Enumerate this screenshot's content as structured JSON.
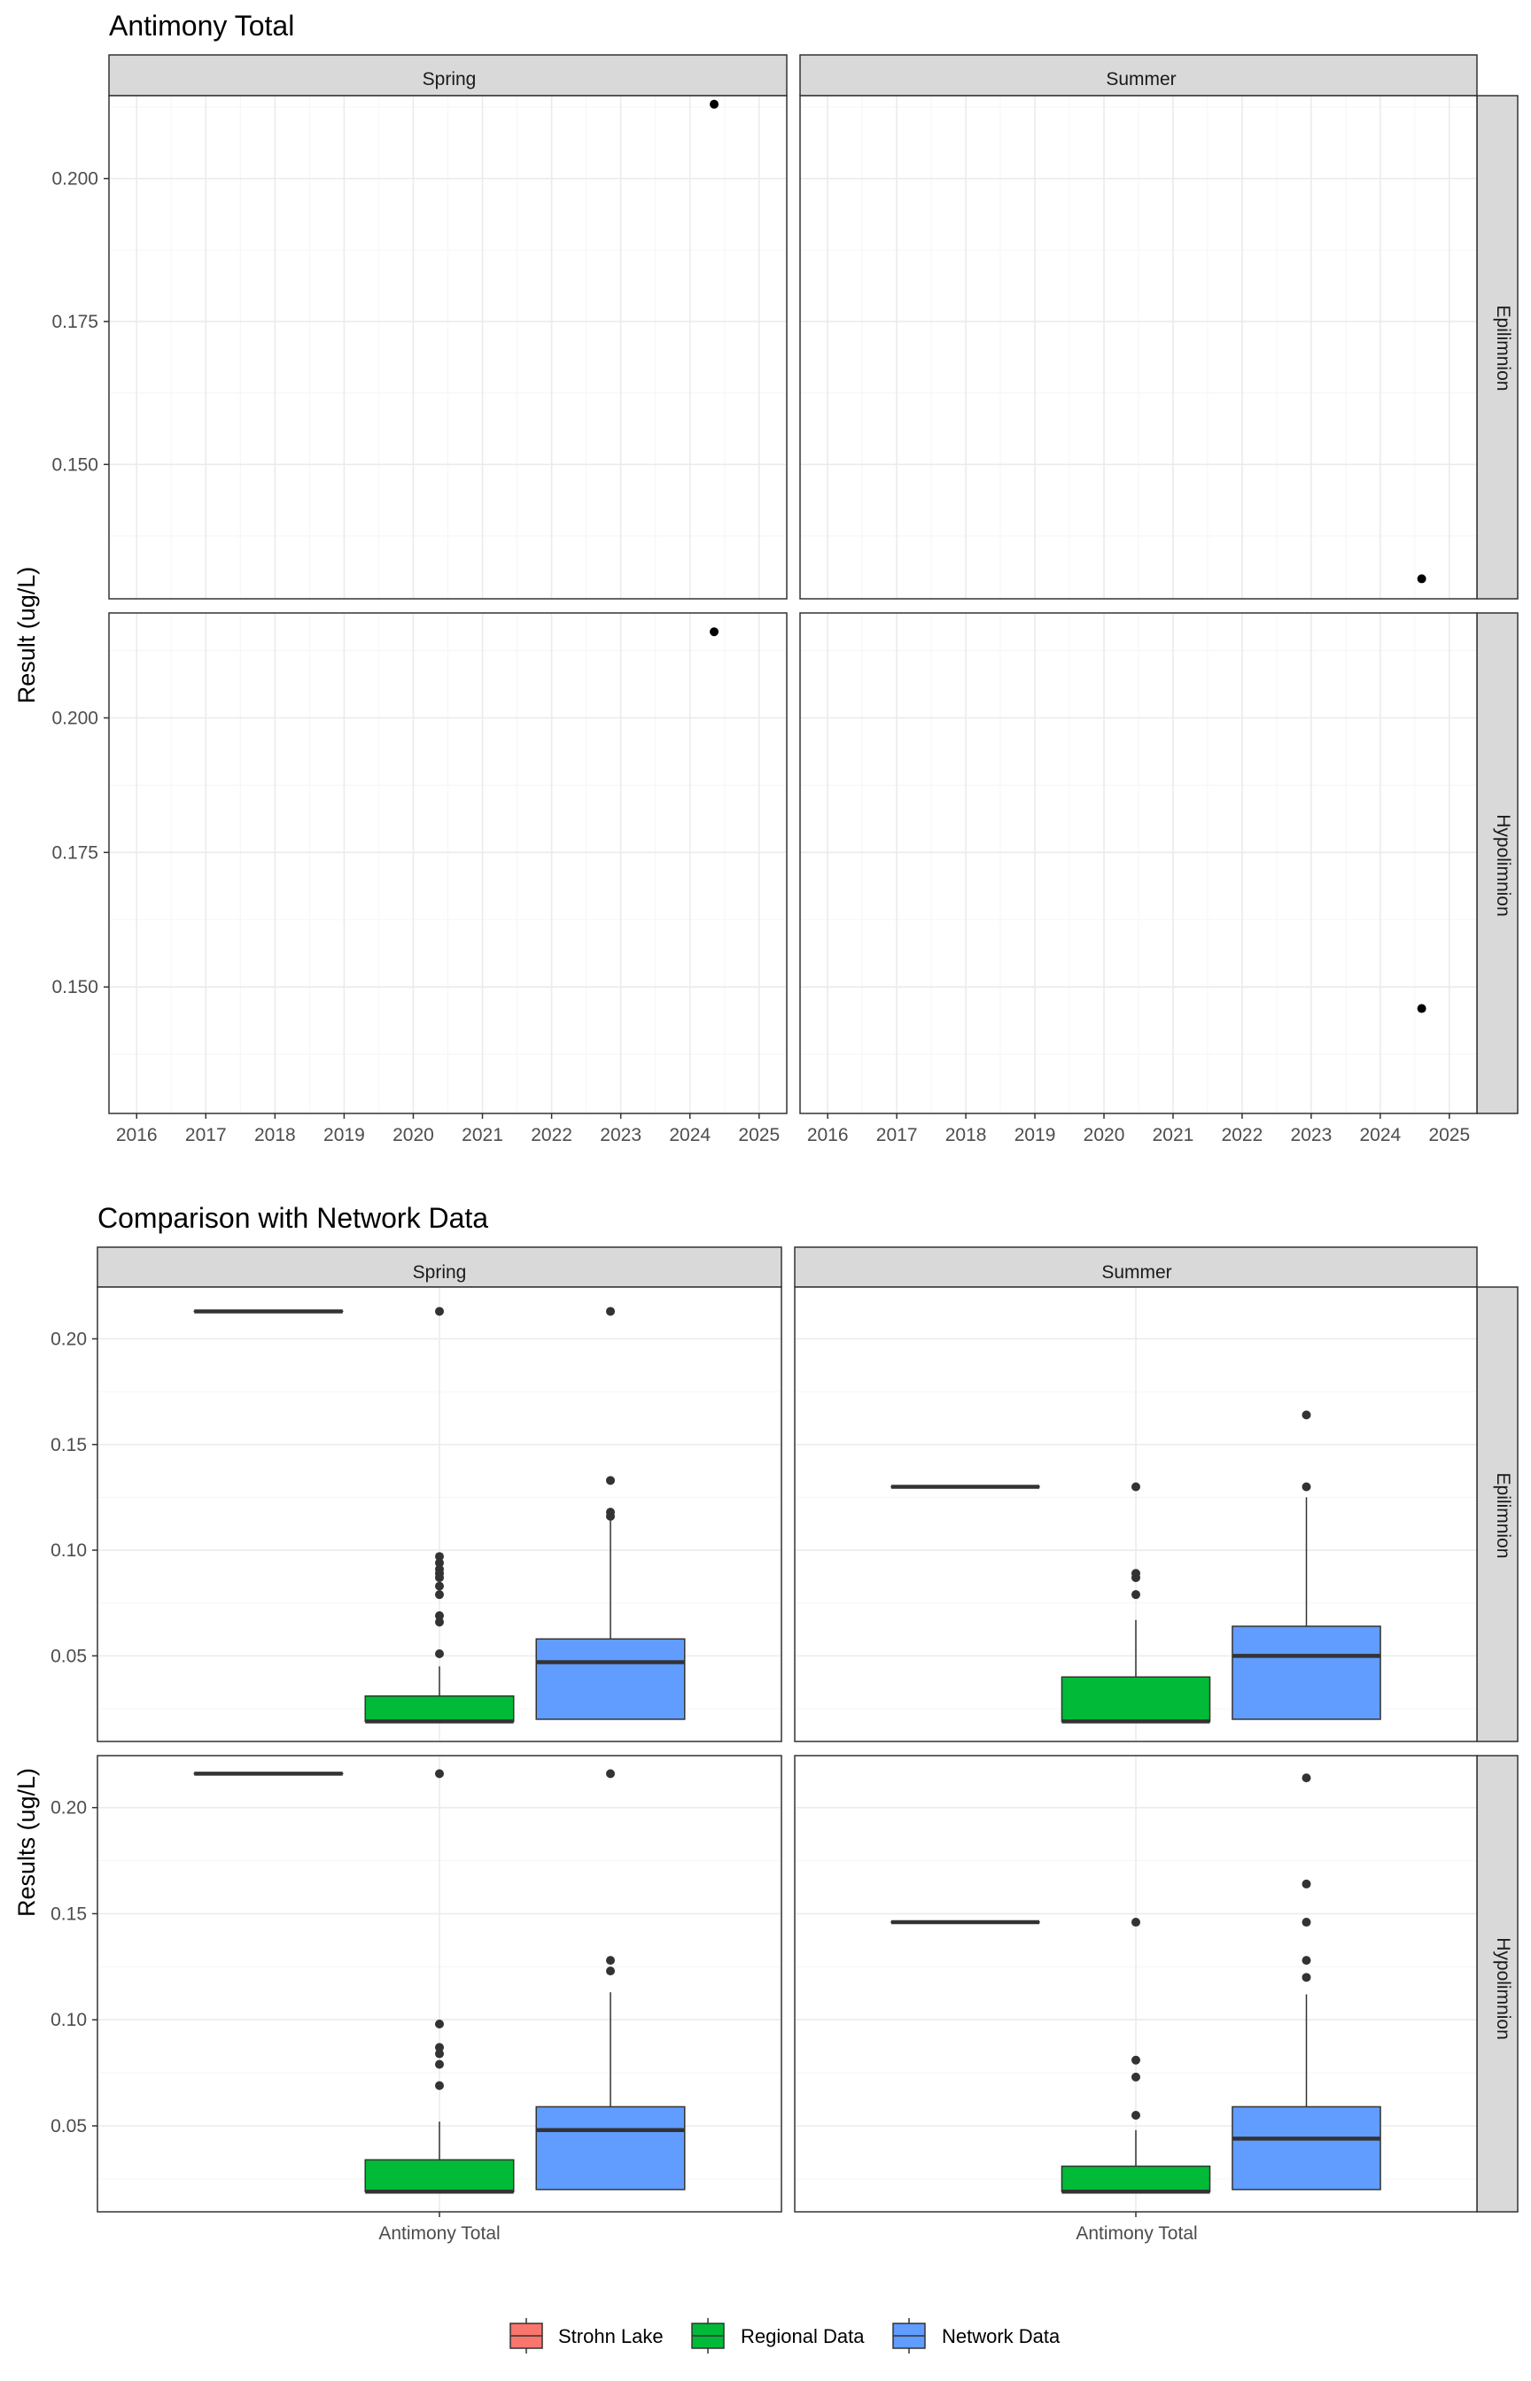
{
  "chart_data": [
    {
      "type": "scatter",
      "title": "Antimony Total",
      "ylabel": "Result (ug/L)",
      "xlabel": "",
      "xlim": [
        2015.6,
        2025.4
      ],
      "ylim": [
        0.1265,
        0.2145
      ],
      "x_ticks": [
        2016,
        2017,
        2018,
        2019,
        2020,
        2021,
        2022,
        2023,
        2024,
        2025
      ],
      "y_ticks": [
        0.15,
        0.175,
        0.2
      ],
      "y_tick_labels": [
        "0.150",
        "0.175",
        "0.200"
      ],
      "columns": [
        "Spring",
        "Summer"
      ],
      "rows": [
        "Epilimnion",
        "Hypolimnion"
      ],
      "grid": true,
      "panels": [
        {
          "column": "Spring",
          "row": "Epilimnion",
          "ylim": [
            0.1265,
            0.2145
          ],
          "points": [
            {
              "x": 2024.35,
              "y": 0.213
            }
          ]
        },
        {
          "column": "Summer",
          "row": "Epilimnion",
          "ylim": [
            0.1265,
            0.2145
          ],
          "points": [
            {
              "x": 2024.6,
              "y": 0.13
            }
          ]
        },
        {
          "column": "Spring",
          "row": "Hypolimnion",
          "ylim": [
            0.1265,
            0.2195
          ],
          "points": [
            {
              "x": 2024.35,
              "y": 0.216
            }
          ]
        },
        {
          "column": "Summer",
          "row": "Hypolimnion",
          "ylim": [
            0.1265,
            0.2195
          ],
          "points": [
            {
              "x": 2024.6,
              "y": 0.146
            }
          ]
        }
      ]
    },
    {
      "type": "box",
      "title": "Comparison with Network Data",
      "ylabel": "Results (ug/L)",
      "categories": [
        "Antimony Total"
      ],
      "ylim": [
        0.0095,
        0.2245
      ],
      "y_ticks": [
        0.05,
        0.1,
        0.15,
        0.2
      ],
      "y_tick_labels": [
        "0.05",
        "0.10",
        "0.15",
        "0.20"
      ],
      "columns": [
        "Spring",
        "Summer"
      ],
      "rows": [
        "Epilimnion",
        "Hypolimnion"
      ],
      "grid": true,
      "legend_position": "bottom",
      "series": [
        {
          "name": "Strohn Lake",
          "color": "#F8766D"
        },
        {
          "name": "Regional Data",
          "color": "#00BA38"
        },
        {
          "name": "Network Data",
          "color": "#619CFF"
        }
      ],
      "panels": [
        {
          "column": "Spring",
          "row": "Epilimnion",
          "boxes": {
            "Strohn Lake": {
              "min": 0.213,
              "q1": 0.213,
              "median": 0.213,
              "q3": 0.213,
              "max": 0.213,
              "outliers": []
            },
            "Regional Data": {
              "min": 0.019,
              "q1": 0.019,
              "median": 0.019,
              "q3": 0.031,
              "max": 0.045,
              "outliers": [
                0.051,
                0.066,
                0.069,
                0.079,
                0.083,
                0.087,
                0.089,
                0.091,
                0.094,
                0.097,
                0.213
              ]
            },
            "Network Data": {
              "min": 0.02,
              "q1": 0.02,
              "median": 0.047,
              "q3": 0.058,
              "max": 0.114,
              "outliers": [
                0.116,
                0.118,
                0.133,
                0.213
              ]
            }
          }
        },
        {
          "column": "Summer",
          "row": "Epilimnion",
          "boxes": {
            "Strohn Lake": {
              "min": 0.13,
              "q1": 0.13,
              "median": 0.13,
              "q3": 0.13,
              "max": 0.13,
              "outliers": []
            },
            "Regional Data": {
              "min": 0.019,
              "q1": 0.019,
              "median": 0.019,
              "q3": 0.04,
              "max": 0.067,
              "outliers": [
                0.079,
                0.087,
                0.089,
                0.13
              ]
            },
            "Network Data": {
              "min": 0.02,
              "q1": 0.02,
              "median": 0.05,
              "q3": 0.064,
              "max": 0.125,
              "outliers": [
                0.13,
                0.164
              ]
            }
          }
        },
        {
          "column": "Spring",
          "row": "Hypolimnion",
          "boxes": {
            "Strohn Lake": {
              "min": 0.216,
              "q1": 0.216,
              "median": 0.216,
              "q3": 0.216,
              "max": 0.216,
              "outliers": []
            },
            "Regional Data": {
              "min": 0.019,
              "q1": 0.019,
              "median": 0.019,
              "q3": 0.034,
              "max": 0.052,
              "outliers": [
                0.069,
                0.079,
                0.084,
                0.087,
                0.098,
                0.216
              ]
            },
            "Network Data": {
              "min": 0.02,
              "q1": 0.02,
              "median": 0.048,
              "q3": 0.059,
              "max": 0.113,
              "outliers": [
                0.123,
                0.128,
                0.216
              ]
            }
          }
        },
        {
          "column": "Summer",
          "row": "Hypolimnion",
          "boxes": {
            "Strohn Lake": {
              "min": 0.146,
              "q1": 0.146,
              "median": 0.146,
              "q3": 0.146,
              "max": 0.146,
              "outliers": []
            },
            "Regional Data": {
              "min": 0.019,
              "q1": 0.019,
              "median": 0.019,
              "q3": 0.031,
              "max": 0.048,
              "outliers": [
                0.055,
                0.073,
                0.081,
                0.146
              ]
            },
            "Network Data": {
              "min": 0.02,
              "q1": 0.02,
              "median": 0.044,
              "q3": 0.059,
              "max": 0.112,
              "outliers": [
                0.12,
                0.128,
                0.146,
                0.164,
                0.214
              ]
            }
          }
        }
      ]
    }
  ]
}
